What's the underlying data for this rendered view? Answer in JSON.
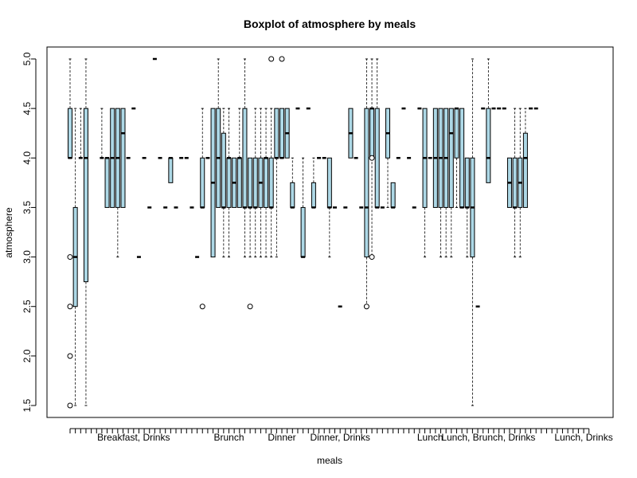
{
  "chart_data": {
    "type": "boxplot",
    "title": "Boxplot of atmosphere by meals",
    "xlabel": "meals",
    "ylabel": "atmosphere",
    "ylim": [
      1.5,
      5.0
    ],
    "y_ticks": [
      "1.5",
      "2.0",
      "2.5",
      "3.0",
      "3.5",
      "4.0",
      "4.5",
      "5.0"
    ],
    "x_labeled_groups": [
      {
        "label": "Breakfast, Drinks",
        "index": 12
      },
      {
        "label": "Brunch",
        "index": 30
      },
      {
        "label": "Dinner",
        "index": 40
      },
      {
        "label": "Dinner, Drinks",
        "index": 51
      },
      {
        "label": "Lunch",
        "index": 68
      },
      {
        "label": "Lunch, Brunch, Drinks",
        "index": 79
      },
      {
        "label": "Lunch, Drinks",
        "index": 97
      }
    ],
    "n_groups": 99,
    "box_fill": "#add8e6",
    "boxes": [
      {
        "i": 0,
        "q1": 4.0,
        "med": 4.0,
        "q3": 4.5,
        "lo": 4.0,
        "hi": 5.0,
        "out": [
          3.0,
          2.5,
          2.0,
          1.5
        ]
      },
      {
        "i": 1,
        "q1": 2.5,
        "med": 3.0,
        "q3": 3.5,
        "lo": 1.5,
        "hi": 4.5
      },
      {
        "i": 2,
        "q1": 4.0,
        "med": 4.0,
        "q3": 4.0,
        "lo": 4.0,
        "hi": 4.5
      },
      {
        "i": 3,
        "q1": 2.75,
        "med": 4.0,
        "q3": 4.5,
        "lo": 1.5,
        "hi": 5.0
      },
      {
        "i": 6,
        "q1": 4.0,
        "med": 4.0,
        "q3": 4.0,
        "lo": 4.0,
        "hi": 4.5
      },
      {
        "i": 7,
        "q1": 3.5,
        "med": 4.0,
        "q3": 4.0,
        "lo": 3.5,
        "hi": 4.0
      },
      {
        "i": 8,
        "q1": 3.5,
        "med": 4.0,
        "q3": 4.5,
        "lo": 3.5,
        "hi": 4.5
      },
      {
        "i": 9,
        "q1": 3.5,
        "med": 4.0,
        "q3": 4.5,
        "lo": 3.0,
        "hi": 4.5
      },
      {
        "i": 10,
        "q1": 3.5,
        "med": 4.25,
        "q3": 4.5,
        "lo": 3.5,
        "hi": 4.5
      },
      {
        "i": 11,
        "q1": 4.0,
        "med": 4.0,
        "q3": 4.0,
        "lo": 4.0,
        "hi": 4.0
      },
      {
        "i": 12,
        "q1": 4.5,
        "med": 4.5,
        "q3": 4.5,
        "lo": 4.5,
        "hi": 4.5
      },
      {
        "i": 13,
        "q1": 3.0,
        "med": 3.0,
        "q3": 3.0,
        "lo": 3.0,
        "hi": 3.0
      },
      {
        "i": 14,
        "q1": 4.0,
        "med": 4.0,
        "q3": 4.0,
        "lo": 4.0,
        "hi": 4.0
      },
      {
        "i": 15,
        "q1": 3.5,
        "med": 3.5,
        "q3": 3.5,
        "lo": 3.5,
        "hi": 3.5
      },
      {
        "i": 16,
        "q1": 5.0,
        "med": 5.0,
        "q3": 5.0,
        "lo": 5.0,
        "hi": 5.0
      },
      {
        "i": 17,
        "q1": 4.0,
        "med": 4.0,
        "q3": 4.0,
        "lo": 4.0,
        "hi": 4.0
      },
      {
        "i": 18,
        "q1": 3.5,
        "med": 3.5,
        "q3": 3.5,
        "lo": 3.5,
        "hi": 3.5
      },
      {
        "i": 19,
        "q1": 3.75,
        "med": 4.0,
        "q3": 4.0,
        "lo": 3.75,
        "hi": 4.0
      },
      {
        "i": 20,
        "q1": 3.5,
        "med": 3.5,
        "q3": 3.5,
        "lo": 3.5,
        "hi": 3.5
      },
      {
        "i": 21,
        "q1": 4.0,
        "med": 4.0,
        "q3": 4.0,
        "lo": 4.0,
        "hi": 4.0
      },
      {
        "i": 22,
        "q1": 4.0,
        "med": 4.0,
        "q3": 4.0,
        "lo": 4.0,
        "hi": 4.0
      },
      {
        "i": 23,
        "q1": 3.5,
        "med": 3.5,
        "q3": 3.5,
        "lo": 3.5,
        "hi": 3.5
      },
      {
        "i": 24,
        "q1": 3.0,
        "med": 3.0,
        "q3": 3.0,
        "lo": 3.0,
        "hi": 3.0
      },
      {
        "i": 25,
        "q1": 3.5,
        "med": 3.5,
        "q3": 4.0,
        "lo": 3.5,
        "hi": 4.5,
        "out": [
          2.5
        ]
      },
      {
        "i": 26,
        "q1": 4.0,
        "med": 4.0,
        "q3": 4.0,
        "lo": 4.0,
        "hi": 4.0
      },
      {
        "i": 27,
        "q1": 3.0,
        "med": 3.75,
        "q3": 4.5,
        "lo": 3.0,
        "hi": 4.5
      },
      {
        "i": 28,
        "q1": 3.5,
        "med": 4.0,
        "q3": 4.5,
        "lo": 3.5,
        "hi": 5.0
      },
      {
        "i": 29,
        "q1": 3.5,
        "med": 3.5,
        "q3": 4.25,
        "lo": 3.0,
        "hi": 4.5
      },
      {
        "i": 30,
        "q1": 3.5,
        "med": 4.0,
        "q3": 4.0,
        "lo": 3.0,
        "hi": 4.5
      },
      {
        "i": 31,
        "q1": 3.5,
        "med": 3.75,
        "q3": 4.0,
        "lo": 3.5,
        "hi": 4.0
      },
      {
        "i": 32,
        "q1": 3.5,
        "med": 4.0,
        "q3": 4.0,
        "lo": 3.5,
        "hi": 4.5
      },
      {
        "i": 33,
        "q1": 3.5,
        "med": 3.5,
        "q3": 4.5,
        "lo": 3.0,
        "hi": 5.0
      },
      {
        "i": 34,
        "q1": 3.5,
        "med": 3.5,
        "q3": 4.0,
        "lo": 3.0,
        "hi": 4.0,
        "out": [
          2.5
        ]
      },
      {
        "i": 35,
        "q1": 3.5,
        "med": 3.5,
        "q3": 4.0,
        "lo": 3.0,
        "hi": 4.5
      },
      {
        "i": 36,
        "q1": 3.5,
        "med": 3.75,
        "q3": 4.0,
        "lo": 3.0,
        "hi": 4.5
      },
      {
        "i": 37,
        "q1": 3.5,
        "med": 4.0,
        "q3": 4.0,
        "lo": 3.0,
        "hi": 4.5
      },
      {
        "i": 38,
        "q1": 3.5,
        "med": 3.5,
        "q3": 4.0,
        "lo": 3.0,
        "hi": 4.5,
        "out": [
          5.0
        ]
      },
      {
        "i": 39,
        "q1": 4.0,
        "med": 4.0,
        "q3": 4.5,
        "lo": 3.0,
        "hi": 4.5
      },
      {
        "i": 40,
        "q1": 4.0,
        "med": 4.0,
        "q3": 4.5,
        "lo": 4.0,
        "hi": 4.5,
        "out": [
          5.0
        ]
      },
      {
        "i": 41,
        "q1": 4.0,
        "med": 4.25,
        "q3": 4.5,
        "lo": 4.0,
        "hi": 4.5
      },
      {
        "i": 42,
        "q1": 3.5,
        "med": 3.5,
        "q3": 3.75,
        "lo": 3.5,
        "hi": 4.0
      },
      {
        "i": 43,
        "q1": 4.5,
        "med": 4.5,
        "q3": 4.5,
        "lo": 4.5,
        "hi": 4.5
      },
      {
        "i": 44,
        "q1": 3.0,
        "med": 3.0,
        "q3": 3.5,
        "lo": 3.0,
        "hi": 4.0
      },
      {
        "i": 45,
        "q1": 4.5,
        "med": 4.5,
        "q3": 4.5,
        "lo": 4.5,
        "hi": 4.5
      },
      {
        "i": 46,
        "q1": 3.5,
        "med": 3.5,
        "q3": 3.75,
        "lo": 3.5,
        "hi": 4.0
      },
      {
        "i": 47,
        "q1": 4.0,
        "med": 4.0,
        "q3": 4.0,
        "lo": 4.0,
        "hi": 4.0
      },
      {
        "i": 48,
        "q1": 4.0,
        "med": 4.0,
        "q3": 4.0,
        "lo": 4.0,
        "hi": 4.0
      },
      {
        "i": 49,
        "q1": 3.5,
        "med": 3.5,
        "q3": 4.0,
        "lo": 3.0,
        "hi": 4.0
      },
      {
        "i": 50,
        "q1": 3.5,
        "med": 3.5,
        "q3": 3.5,
        "lo": 3.5,
        "hi": 3.5
      },
      {
        "i": 51,
        "q1": 2.5,
        "med": 2.5,
        "q3": 2.5,
        "lo": 2.5,
        "hi": 2.5
      },
      {
        "i": 52,
        "q1": 3.5,
        "med": 3.5,
        "q3": 3.5,
        "lo": 3.5,
        "hi": 3.5
      },
      {
        "i": 53,
        "q1": 4.0,
        "med": 4.25,
        "q3": 4.5,
        "lo": 4.0,
        "hi": 4.5
      },
      {
        "i": 54,
        "q1": 4.0,
        "med": 4.0,
        "q3": 4.0,
        "lo": 4.0,
        "hi": 4.0
      },
      {
        "i": 55,
        "q1": 3.5,
        "med": 3.5,
        "q3": 3.5,
        "lo": 3.5,
        "hi": 3.5
      },
      {
        "i": 56,
        "q1": 3.0,
        "med": 3.5,
        "q3": 4.5,
        "lo": 2.5,
        "hi": 5.0,
        "out": [
          2.5
        ]
      },
      {
        "i": 57,
        "q1": 4.0,
        "med": 4.5,
        "q3": 4.5,
        "lo": 3.0,
        "hi": 5.0,
        "out": [
          3.0,
          4.0
        ]
      },
      {
        "i": 58,
        "q1": 3.5,
        "med": 3.5,
        "q3": 4.5,
        "lo": 3.5,
        "hi": 5.0
      },
      {
        "i": 59,
        "q1": 3.5,
        "med": 3.5,
        "q3": 3.5,
        "lo": 3.5,
        "hi": 3.5
      },
      {
        "i": 60,
        "q1": 4.0,
        "med": 4.25,
        "q3": 4.5,
        "lo": 3.5,
        "hi": 4.5
      },
      {
        "i": 61,
        "q1": 3.5,
        "med": 3.5,
        "q3": 3.75,
        "lo": 3.5,
        "hi": 3.75
      },
      {
        "i": 62,
        "q1": 4.0,
        "med": 4.0,
        "q3": 4.0,
        "lo": 4.0,
        "hi": 4.0
      },
      {
        "i": 63,
        "q1": 4.5,
        "med": 4.5,
        "q3": 4.5,
        "lo": 4.5,
        "hi": 4.5
      },
      {
        "i": 64,
        "q1": 4.0,
        "med": 4.0,
        "q3": 4.0,
        "lo": 4.0,
        "hi": 4.0
      },
      {
        "i": 65,
        "q1": 3.5,
        "med": 3.5,
        "q3": 3.5,
        "lo": 3.5,
        "hi": 3.5
      },
      {
        "i": 66,
        "q1": 4.5,
        "med": 4.5,
        "q3": 4.5,
        "lo": 4.5,
        "hi": 4.5
      },
      {
        "i": 67,
        "q1": 3.5,
        "med": 4.0,
        "q3": 4.5,
        "lo": 3.0,
        "hi": 4.5
      },
      {
        "i": 68,
        "q1": 4.0,
        "med": 4.0,
        "q3": 4.0,
        "lo": 4.0,
        "hi": 4.0
      },
      {
        "i": 69,
        "q1": 3.5,
        "med": 4.0,
        "q3": 4.5,
        "lo": 3.5,
        "hi": 4.5
      },
      {
        "i": 70,
        "q1": 3.5,
        "med": 4.0,
        "q3": 4.5,
        "lo": 3.0,
        "hi": 4.5
      },
      {
        "i": 71,
        "q1": 3.5,
        "med": 4.0,
        "q3": 4.5,
        "lo": 3.0,
        "hi": 4.5
      },
      {
        "i": 72,
        "q1": 3.5,
        "med": 4.25,
        "q3": 4.5,
        "lo": 3.0,
        "hi": 4.5
      },
      {
        "i": 73,
        "q1": 4.0,
        "med": 4.5,
        "q3": 4.5,
        "lo": 3.5,
        "hi": 4.5
      },
      {
        "i": 74,
        "q1": 3.5,
        "med": 3.5,
        "q3": 4.5,
        "lo": 3.5,
        "hi": 4.5
      },
      {
        "i": 75,
        "q1": 3.5,
        "med": 3.5,
        "q3": 4.0,
        "lo": 3.0,
        "hi": 4.0
      },
      {
        "i": 76,
        "q1": 3.0,
        "med": 3.5,
        "q3": 4.0,
        "lo": 1.5,
        "hi": 5.0
      },
      {
        "i": 77,
        "q1": 2.5,
        "med": 2.5,
        "q3": 2.5,
        "lo": 2.5,
        "hi": 2.5
      },
      {
        "i": 78,
        "q1": 4.5,
        "med": 4.5,
        "q3": 4.5,
        "lo": 4.5,
        "hi": 4.5
      },
      {
        "i": 79,
        "q1": 3.75,
        "med": 4.0,
        "q3": 4.5,
        "lo": 3.75,
        "hi": 5.0
      },
      {
        "i": 80,
        "q1": 4.5,
        "med": 4.5,
        "q3": 4.5,
        "lo": 4.5,
        "hi": 4.5
      },
      {
        "i": 81,
        "q1": 4.5,
        "med": 4.5,
        "q3": 4.5,
        "lo": 4.5,
        "hi": 4.5
      },
      {
        "i": 82,
        "q1": 4.5,
        "med": 4.5,
        "q3": 4.5,
        "lo": 4.5,
        "hi": 4.5
      },
      {
        "i": 83,
        "q1": 3.5,
        "med": 3.75,
        "q3": 4.0,
        "lo": 3.5,
        "hi": 4.0
      },
      {
        "i": 84,
        "q1": 3.5,
        "med": 3.5,
        "q3": 4.0,
        "lo": 3.0,
        "hi": 4.5
      },
      {
        "i": 85,
        "q1": 3.5,
        "med": 3.75,
        "q3": 4.0,
        "lo": 3.0,
        "hi": 4.5
      },
      {
        "i": 86,
        "q1": 3.5,
        "med": 4.0,
        "q3": 4.25,
        "lo": 3.5,
        "hi": 4.5
      },
      {
        "i": 87,
        "q1": 4.5,
        "med": 4.5,
        "q3": 4.5,
        "lo": 4.5,
        "hi": 4.5
      },
      {
        "i": 88,
        "q1": 4.5,
        "med": 4.5,
        "q3": 4.5,
        "lo": 4.5,
        "hi": 4.5
      }
    ]
  }
}
